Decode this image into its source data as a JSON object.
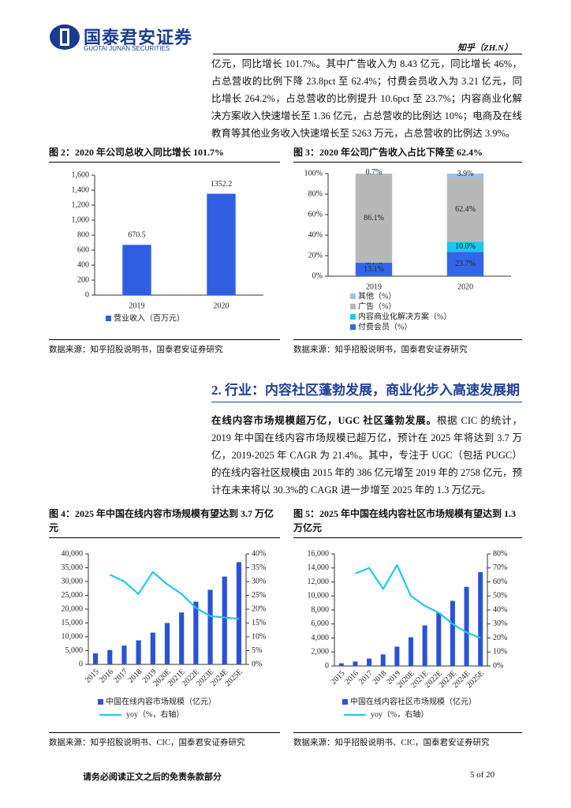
{
  "header": {
    "company": "国泰君安证券",
    "company_en": "GUOTAI JUNAN SECURITIES",
    "ticker": "知乎（ZH.N）"
  },
  "intro": "亿元，同比增长 101.7%。其中广告收入为 8.43 亿元，同比增长 46%，占总营收的比例下降 23.8pct 至 62.4%；付费会员收入为 3.21 亿元，同比增长 264.2%，占总营收的比例提升 10.6pct 至 23.7%；内容商业化解决方案收入快速增长至 1.36 亿元，占总营收的比例达 10%；电商及在线教育等其他业务收入快速增长至 5263 万元，占总营收的比例达 3.9%。",
  "section": {
    "title": "2. 行业：内容社区蓬勃发展，商业化步入高速发展期",
    "lead": "在线内容市场规模超万亿，UGC 社区蓬勃发展。",
    "body": "根据 CIC 的统计，2019 年中国在线内容市场规模已超万亿，预计在 2025 年将达到 3.7 万亿，2019-2025 年 CAGR 为 21.4%。其中，专注于 UGC（包括 PUGC）的在线内容社区规模由 2015 年的 386 亿元增至 2019 年的 2758 亿元，预计在未来将以 30.3%的 CAGR 进一步增至 2025 年的 1.3 万亿元。"
  },
  "chart_data": [
    {
      "type": "bar",
      "title": "图 2：2020 年公司总收入同比增长 101.7%",
      "source": "数据来源：知乎招股说明书，国泰君安证券研究",
      "categories": [
        "2019",
        "2020"
      ],
      "series": [
        {
          "name": "营业收入（百万元）",
          "color": "#2f5fe0",
          "values": [
            670.5,
            1352.2
          ]
        }
      ],
      "ylim": [
        0,
        1600
      ],
      "yticks": [
        0,
        200,
        400,
        600,
        800,
        {
          "value": 1000,
          "label": "1,000"
        },
        {
          "value": 1200,
          "label": "1,200"
        },
        {
          "value": 1400,
          "label": "1,400"
        },
        {
          "value": 1600,
          "label": "1,600"
        }
      ]
    },
    {
      "type": "stacked_bar",
      "title": "图 3：2020 年公司广告收入占比下降至 62.4%",
      "source": "数据来源：知乎招股说明书，国泰君安证券研究",
      "categories": [
        "2019",
        "2020"
      ],
      "series": [
        {
          "name": "付费会员（%）",
          "color": "#3366e8",
          "values": [
            13.1,
            23.7
          ],
          "value_labels": [
            "13.1%",
            "23.7%"
          ]
        },
        {
          "name": "内容商业化解决方案（%）",
          "color": "#19c8f0",
          "values": [
            0.1,
            10.0
          ],
          "value_labels": [
            "0.1%",
            "10.0%"
          ]
        },
        {
          "name": "广告（%）",
          "color": "#b8b8b8",
          "values": [
            86.1,
            62.4
          ],
          "value_labels": [
            "86.1%",
            "62.4%"
          ]
        },
        {
          "name": "其他（%）",
          "color": "#9cc0e6",
          "values": [
            0.7,
            3.9
          ],
          "value_labels": [
            "0.7%",
            "3.9%"
          ]
        }
      ],
      "ylim": [
        0,
        100
      ],
      "yticks": [
        {
          "value": 0,
          "label": "0%"
        },
        {
          "value": 20,
          "label": "20%"
        },
        {
          "value": 40,
          "label": "40%"
        },
        {
          "value": 60,
          "label": "60%"
        },
        {
          "value": 80,
          "label": "80%"
        },
        {
          "value": 100,
          "label": "100%"
        }
      ]
    },
    {
      "type": "bar_line",
      "title": "图 4：2025 年中国在线内容市场规模有望达到 3.7 万亿元",
      "source": "数据来源：知乎招股说明书、CIC，国泰君安证券研究",
      "categories": [
        "2015",
        "2016",
        "2017",
        "2018",
        "2019",
        "2020E",
        "2021E",
        "2022E",
        "2023E",
        "2024E",
        "2025E"
      ],
      "series": [
        {
          "name": "中国在线内容市场规模（亿元）",
          "color": "#2a52d8",
          "values": [
            4000,
            5200,
            6800,
            8700,
            11500,
            15000,
            18800,
            22700,
            27000,
            31800,
            37000
          ]
        },
        {
          "name": "yoy（%，右轴）",
          "color": "#1ec8f0",
          "axis": "y2",
          "values": [
            null,
            32.5,
            30,
            25.5,
            33.5,
            29,
            25.5,
            20.5,
            17.5,
            17,
            16.5
          ]
        }
      ],
      "ylim": [
        0,
        40000
      ],
      "yticks": [
        0,
        {
          "value": 5000,
          "label": "5,000"
        },
        {
          "value": 10000,
          "label": "10,000"
        },
        {
          "value": 15000,
          "label": "15,000"
        },
        {
          "value": 20000,
          "label": "20,000"
        },
        {
          "value": 25000,
          "label": "25,000"
        },
        {
          "value": 30000,
          "label": "30,000"
        },
        {
          "value": 35000,
          "label": "35,000"
        },
        {
          "value": 40000,
          "label": "40,000"
        }
      ],
      "y2lim": [
        0,
        40
      ],
      "y2ticks": [
        {
          "value": 0,
          "label": "0%"
        },
        {
          "value": 5,
          "label": "5%"
        },
        {
          "value": 10,
          "label": "10%"
        },
        {
          "value": 15,
          "label": "15%"
        },
        {
          "value": 20,
          "label": "20%"
        },
        {
          "value": 25,
          "label": "25%"
        },
        {
          "value": 30,
          "label": "30%"
        },
        {
          "value": 35,
          "label": "35%"
        },
        {
          "value": 40,
          "label": "40%"
        }
      ]
    },
    {
      "type": "bar_line",
      "title": "图 5：2025 年中国在线内容社区市场规模有望达到 1.3 万亿元",
      "source": "数据来源：知乎招股说明书、CIC，国泰君安证券研究",
      "categories": [
        "2015",
        "2016",
        "2017",
        "2018",
        "2019",
        "2020E",
        "2021E",
        "2022E",
        "2023E",
        "2024E",
        "2025E"
      ],
      "series": [
        {
          "name": "中国在线内容社区市场规模（亿元）",
          "color": "#2a52d8",
          "values": [
            386,
            640,
            1050,
            1650,
            2758,
            4100,
            5800,
            7600,
            9300,
            11300,
            13400
          ]
        },
        {
          "name": "yoy（%，右轴）",
          "color": "#1ec8f0",
          "axis": "y2",
          "values": [
            null,
            66,
            70,
            55,
            72,
            50,
            43,
            38,
            30,
            24,
            20
          ]
        }
      ],
      "ylim": [
        0,
        16000
      ],
      "yticks": [
        0,
        {
          "value": 2000,
          "label": "2,000"
        },
        {
          "value": 4000,
          "label": "4,000"
        },
        {
          "value": 6000,
          "label": "6,000"
        },
        {
          "value": 8000,
          "label": "8,000"
        },
        {
          "value": 10000,
          "label": "10,000"
        },
        {
          "value": 12000,
          "label": "12,000"
        },
        {
          "value": 14000,
          "label": "14,000"
        },
        {
          "value": 16000,
          "label": "16,000"
        }
      ],
      "y2lim": [
        0,
        80
      ],
      "y2ticks": [
        {
          "value": 0,
          "label": "0%"
        },
        {
          "value": 10,
          "label": "10%"
        },
        {
          "value": 20,
          "label": "20%"
        },
        {
          "value": 30,
          "label": "30%"
        },
        {
          "value": 40,
          "label": "40%"
        },
        {
          "value": 50,
          "label": "50%"
        },
        {
          "value": 60,
          "label": "60%"
        },
        {
          "value": 70,
          "label": "70%"
        },
        {
          "value": 80,
          "label": "80%"
        }
      ]
    }
  ],
  "footer": {
    "disclaimer": "请务必阅读正文之后的免责条款部分",
    "page": "5 of 20"
  }
}
